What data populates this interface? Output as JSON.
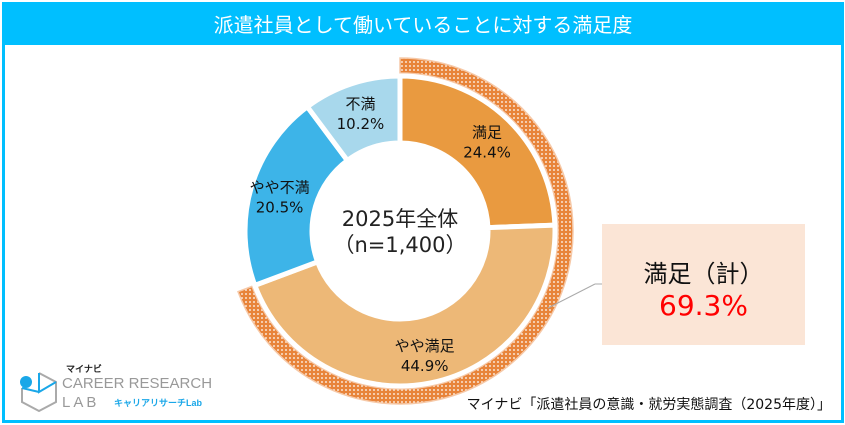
{
  "title": "派遣社員として働いていることに対する満足度",
  "chart_data": {
    "type": "pie",
    "title": "派遣社員として働いていることに対する満足度",
    "center_label": [
      "2025年全体",
      "（n=1,400）"
    ],
    "categories": [
      "満足",
      "やや満足",
      "やや不満",
      "不満"
    ],
    "values": [
      24.4,
      44.9,
      20.5,
      10.2
    ],
    "value_labels": [
      "24.4%",
      "44.9%",
      "20.5%",
      "10.2%"
    ],
    "colors": [
      "#E99A40",
      "#EDB877",
      "#3DB4E8",
      "#A8D8EC"
    ],
    "highlight": {
      "label": "満足(計)",
      "value": 69.3,
      "value_label": "69.3%",
      "color": "#E8843A"
    }
  },
  "callout": {
    "label": "満足（計）",
    "value": "69.3%"
  },
  "logo": {
    "brand": "マイナビ",
    "line1": "CAREER RESEARCH",
    "line2": "LAB",
    "kana": "キャリアリサーチLab"
  },
  "source": "マイナビ「派遣社員の意識・就労実態調査（2025年度）」"
}
